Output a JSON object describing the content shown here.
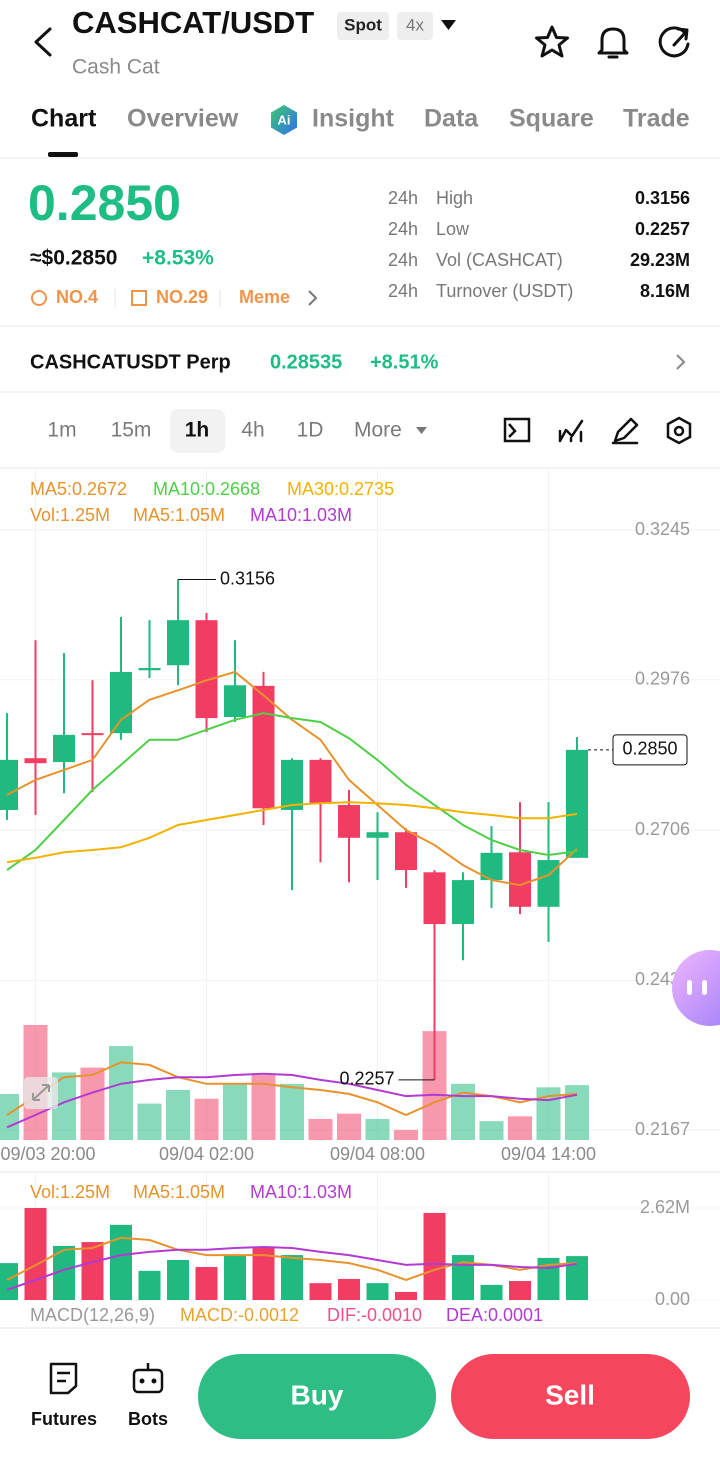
{
  "header": {
    "pair": "CASHCAT/USDT",
    "badge_spot": "Spot",
    "badge_leverage": "4x",
    "name": "Cash Cat"
  },
  "tabs": [
    "Chart",
    "Overview",
    "Insight",
    "Data",
    "Square",
    "Trade"
  ],
  "price": {
    "last": "0.2850",
    "usd": "≈$0.2850",
    "change": "+8.53%",
    "rank": "NO.4",
    "rank_alt": "NO.29",
    "tag": "Meme"
  },
  "stats": [
    {
      "period": "24h",
      "label": "High",
      "value": "0.3156"
    },
    {
      "period": "24h",
      "label": "Low",
      "value": "0.2257"
    },
    {
      "period": "24h",
      "label": "Vol (CASHCAT)",
      "value": "29.23M"
    },
    {
      "period": "24h",
      "label": "Turnover (USDT)",
      "value": "8.16M"
    }
  ],
  "perp": {
    "name": "CASHCATUSDT Perp",
    "price": "0.28535",
    "change": "+8.51%"
  },
  "timeframes": [
    "1m",
    "15m",
    "1h",
    "4h",
    "1D",
    "More"
  ],
  "chart_data": {
    "type": "candlestick",
    "categories": [
      null,
      "09/03 20:00",
      null,
      null,
      null,
      null,
      null,
      "09/04 02:00",
      null,
      null,
      null,
      null,
      null,
      "09/04 08:00",
      null,
      null,
      null,
      null,
      null,
      "09/04 14:00",
      null
    ],
    "open": [
      0.2742,
      0.2835,
      0.2828,
      0.288,
      0.288,
      0.2993,
      0.3002,
      0.3083,
      0.2909,
      0.2965,
      0.2742,
      0.2832,
      0.2751,
      0.2692,
      0.2702,
      0.263,
      0.2537,
      0.2616,
      0.2666,
      0.2568,
      0.2656
    ],
    "high": [
      0.2916,
      0.3047,
      0.3024,
      0.2975,
      0.3089,
      0.3083,
      0.3156,
      0.3096,
      0.3047,
      0.299,
      0.2835,
      0.2835,
      0.2778,
      0.2738,
      0.2709,
      0.2634,
      0.263,
      0.2713,
      0.2756,
      0.2756,
      0.2873
    ],
    "low": [
      0.2724,
      0.2733,
      0.2772,
      0.2774,
      0.2868,
      0.2979,
      0.2966,
      0.2882,
      0.29,
      0.2715,
      0.2598,
      0.2648,
      0.2612,
      0.2616,
      0.2602,
      0.2257,
      0.2472,
      0.2566,
      0.2555,
      0.2505,
      0.2656
    ],
    "close": [
      0.2832,
      0.2826,
      0.2877,
      0.2877,
      0.299,
      0.2997,
      0.3083,
      0.2907,
      0.2966,
      0.2745,
      0.2832,
      0.2754,
      0.2692,
      0.2702,
      0.2634,
      0.2537,
      0.2616,
      0.2665,
      0.2568,
      0.2652,
      0.285
    ],
    "up_color": "#20b97f",
    "down_color": "#f23d63",
    "ma": [
      {
        "name": "MA5:0.2672",
        "color": "#e8922c",
        "values": [
          0.2769,
          0.2796,
          0.2814,
          0.2832,
          0.2904,
          0.294,
          0.2957,
          0.2975,
          0.299,
          0.2948,
          0.2904,
          0.2868,
          0.2796,
          0.2751,
          0.2706,
          0.2679,
          0.2643,
          0.2616,
          0.2607,
          0.2625,
          0.2672
        ]
      },
      {
        "name": "MA10:0.2668",
        "color": "#4fcf48",
        "values": [
          0.2634,
          0.267,
          0.2724,
          0.2778,
          0.2823,
          0.2868,
          0.2868,
          0.2886,
          0.2904,
          0.2916,
          0.2907,
          0.29,
          0.2871,
          0.2832,
          0.2787,
          0.2751,
          0.2715,
          0.2688,
          0.267,
          0.2661,
          0.2668
        ]
      },
      {
        "name": "MA30:0.2735",
        "color": "#f2b200",
        "values": [
          0.2648,
          0.2656,
          0.2666,
          0.267,
          0.2675,
          0.2692,
          0.2715,
          0.2724,
          0.2733,
          0.2742,
          0.2751,
          0.2754,
          0.2756,
          0.2754,
          0.2751,
          0.2745,
          0.2738,
          0.2733,
          0.2727,
          0.2727,
          0.2735
        ]
      }
    ],
    "ylim": [
      0.2167,
      0.3245
    ],
    "yticks": [
      0.3245,
      0.2976,
      0.2706,
      0.2436,
      0.2167
    ],
    "grid": true,
    "high_marker": 0.3156,
    "low_marker": 0.2257,
    "last_price": {
      "value": 0.285,
      "label": "0.2850"
    },
    "volume_name": "Vol:1.25M",
    "volume": [
      1.05,
      2.62,
      1.54,
      1.65,
      2.14,
      0.83,
      1.14,
      0.94,
      1.28,
      1.48,
      1.28,
      0.48,
      0.6,
      0.48,
      0.23,
      2.48,
      1.28,
      0.43,
      0.54,
      1.2,
      1.25
    ],
    "volume_ma": [
      {
        "name": "MA5:1.05M",
        "color": "#e8922c",
        "values": [
          0.57,
          0.99,
          1.43,
          1.48,
          1.77,
          1.71,
          1.43,
          1.28,
          1.28,
          1.28,
          1.2,
          1.14,
          1.05,
          0.86,
          0.57,
          0.86,
          1.08,
          1.0,
          0.86,
          1.0,
          1.05
        ]
      },
      {
        "name": "MA10:1.03M",
        "color": "#b23ad3",
        "values": [
          0.29,
          0.57,
          0.86,
          1.08,
          1.28,
          1.37,
          1.43,
          1.43,
          1.48,
          1.51,
          1.48,
          1.37,
          1.28,
          1.14,
          1.0,
          1.03,
          1.0,
          1.0,
          0.94,
          0.91,
          1.03
        ]
      }
    ],
    "volume_ylim": [
      0,
      2.62
    ],
    "volume_yticks": [
      {
        "value": 2.62,
        "label": "2.62M"
      },
      {
        "value": 0,
        "label": "0.00"
      }
    ],
    "macd": {
      "title": "MACD(12,26,9)",
      "macd": "MACD:-0.0012",
      "dif": "DIF:-0.0010",
      "dea": "DEA:0.0001"
    }
  },
  "bottom_bar": {
    "futures": "Futures",
    "bots": "Bots",
    "buy": "Buy",
    "sell": "Sell"
  }
}
